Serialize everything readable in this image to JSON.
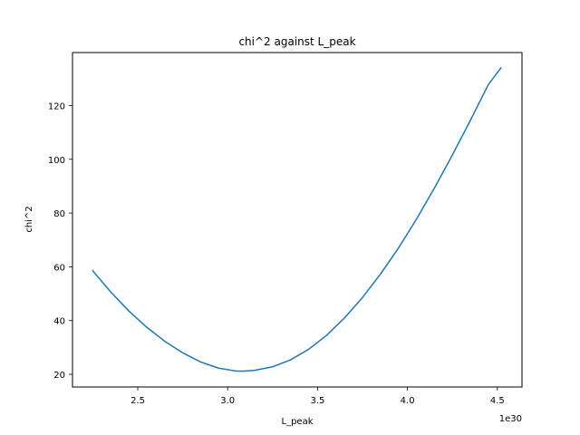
{
  "chart_data": {
    "type": "line",
    "title": "chi^2 against L_peak",
    "xlabel": "L_peak",
    "ylabel": "chi^2",
    "x_offset_label": "1e30",
    "xlim": [
      2.137,
      4.637
    ],
    "ylim": [
      15.3,
      139.7
    ],
    "xticks": [
      2.5,
      3.0,
      3.5,
      4.0,
      4.5
    ],
    "xtick_labels": [
      "2.5",
      "3.0",
      "3.5",
      "4.0",
      "4.5"
    ],
    "yticks": [
      20,
      40,
      60,
      80,
      100,
      120
    ],
    "ytick_labels": [
      "20",
      "40",
      "60",
      "80",
      "100",
      "120"
    ],
    "grid": false,
    "series": [
      {
        "color": "#1f77b4",
        "x": [
          2.25,
          2.35,
          2.45,
          2.55,
          2.65,
          2.75,
          2.85,
          2.95,
          3.05,
          3.09,
          3.15,
          3.25,
          3.35,
          3.45,
          3.55,
          3.65,
          3.75,
          3.85,
          3.95,
          4.05,
          4.15,
          4.25,
          4.35,
          4.45,
          4.52
        ],
        "y": [
          58.5,
          50.6,
          43.6,
          37.5,
          32.3,
          28.0,
          24.6,
          22.3,
          21.2,
          21.2,
          21.5,
          22.8,
          25.4,
          29.3,
          34.5,
          41.0,
          48.6,
          57.3,
          67.0,
          77.7,
          89.3,
          101.6,
          114.5,
          127.8,
          134.0
        ]
      }
    ]
  }
}
